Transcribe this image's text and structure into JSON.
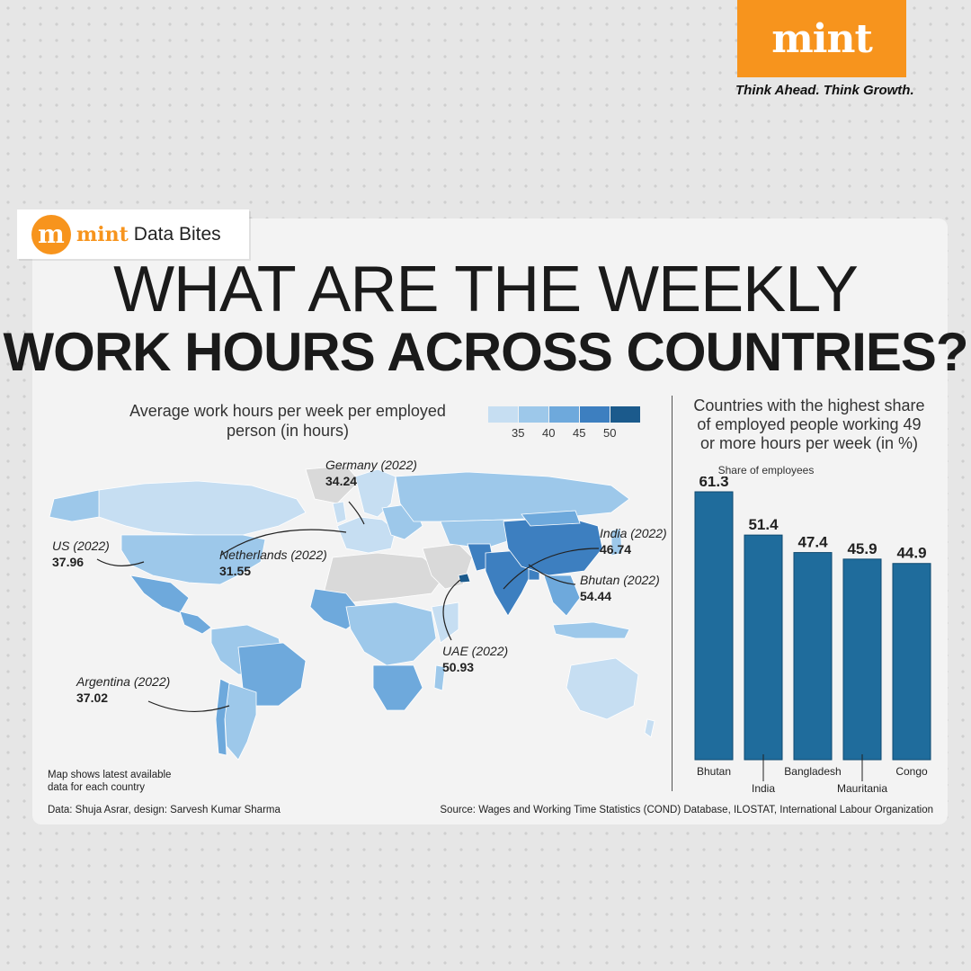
{
  "brand": {
    "logo_word": "mint",
    "tagline": "Think Ahead. Think Growth.",
    "badge_letter": "m",
    "badge_brand": "mint",
    "badge_text": "Data Bites",
    "accent_color": "#f7941d"
  },
  "title": {
    "line1": "WHAT ARE THE WEEKLY",
    "line2": "WORK HOURS ACROSS COUNTRIES?"
  },
  "map": {
    "subtitle_line1": "Average work hours per week per employed",
    "subtitle_line2": "person (in hours)",
    "legend": {
      "ticks": [
        "35",
        "40",
        "45",
        "50"
      ],
      "colors": [
        "#c6def2",
        "#9dc8ea",
        "#6ea9dc",
        "#3d7fc0",
        "#1b5a8c"
      ]
    },
    "annotations": [
      {
        "location": "Germany (2022)",
        "value": "34.24"
      },
      {
        "location": "US (2022)",
        "value": "37.96"
      },
      {
        "location": "Netherlands (2022)",
        "value": "31.55"
      },
      {
        "location": "India (2022)",
        "value": "46.74"
      },
      {
        "location": "Bhutan (2022)",
        "value": "54.44"
      },
      {
        "location": "UAE (2022)",
        "value": "50.93"
      },
      {
        "location": "Argentina (2022)",
        "value": "37.02"
      }
    ],
    "note_line1": "Map shows latest available",
    "note_line2": "data for each country"
  },
  "bar": {
    "subtitle_line1": "Countries with the highest share",
    "subtitle_line2": "of employed people working 49",
    "subtitle_line3": "or more hours per week (in %)",
    "share_label": "Share of employees"
  },
  "chart_data": {
    "type": "bar",
    "categories": [
      "Bhutan",
      "India",
      "Bangladesh",
      "Mauritania",
      "Congo"
    ],
    "values": [
      61.3,
      51.4,
      47.4,
      45.9,
      44.9
    ],
    "ylabel": "Share of employees",
    "bar_color": "#1f6c9c"
  },
  "footer": {
    "credit": "Data: Shuja Asrar, design: Sarvesh Kumar Sharma",
    "source": "Source: Wages and Working Time Statistics (COND) Database, ILOSTAT, International Labour Organization"
  }
}
